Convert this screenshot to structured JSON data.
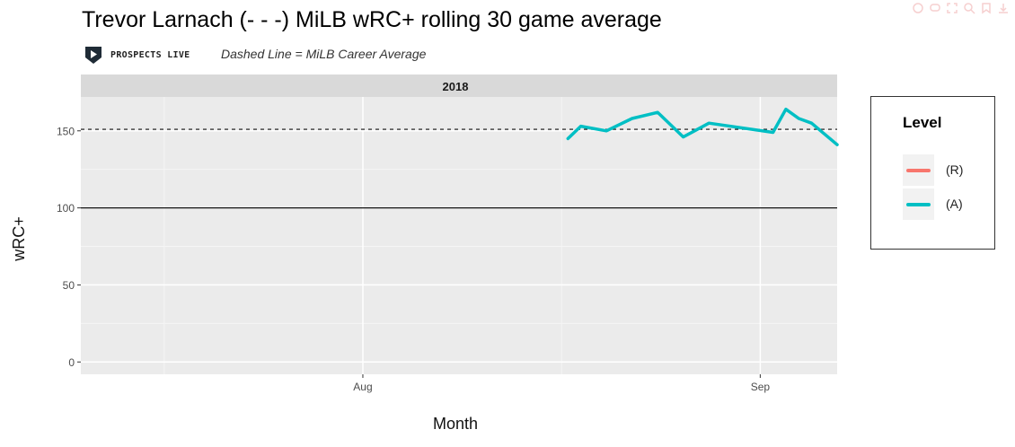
{
  "title": "Trevor Larnach (- - -) MiLB wRC+ rolling 30 game average",
  "subtitle": "Dashed Line = MiLB Career Average",
  "logo_text": "PROSPECTS LIVE",
  "colors": {
    "R": "#F8766D",
    "A": "#00BFC4",
    "panel": "#EBEBEB",
    "strip": "#D9D9D9"
  },
  "toolbar_icons": [
    "comment-icon",
    "chat-icon",
    "expand-icon",
    "zoom-icon",
    "bookmark-icon",
    "download-icon"
  ],
  "chart_data": {
    "type": "line",
    "facet": "2018",
    "xlabel": "Month",
    "ylabel": "wRC+",
    "x_ticks": [
      "Aug",
      "Sep"
    ],
    "x_domain": [
      "2018-07-10",
      "2018-09-07"
    ],
    "y_ticks": [
      0,
      50,
      100,
      150
    ],
    "ylim": [
      -8,
      172
    ],
    "reference_lines": [
      {
        "value": 100,
        "style": "solid"
      },
      {
        "value": 151,
        "style": "dashed"
      }
    ],
    "legend": {
      "title": "Level",
      "entries": [
        "(R)",
        "(A)"
      ],
      "position": "right"
    },
    "series": [
      {
        "name": "(R)",
        "x": [],
        "values": []
      },
      {
        "name": "(A)",
        "x": [
          "2018-08-17",
          "2018-08-18",
          "2018-08-20",
          "2018-08-22",
          "2018-08-24",
          "2018-08-26",
          "2018-08-28",
          "2018-09-02",
          "2018-09-03",
          "2018-09-04",
          "2018-09-05",
          "2018-09-07"
        ],
        "values": [
          145,
          153,
          150,
          158,
          162,
          146,
          155,
          149,
          164,
          158,
          155,
          141
        ]
      }
    ]
  }
}
